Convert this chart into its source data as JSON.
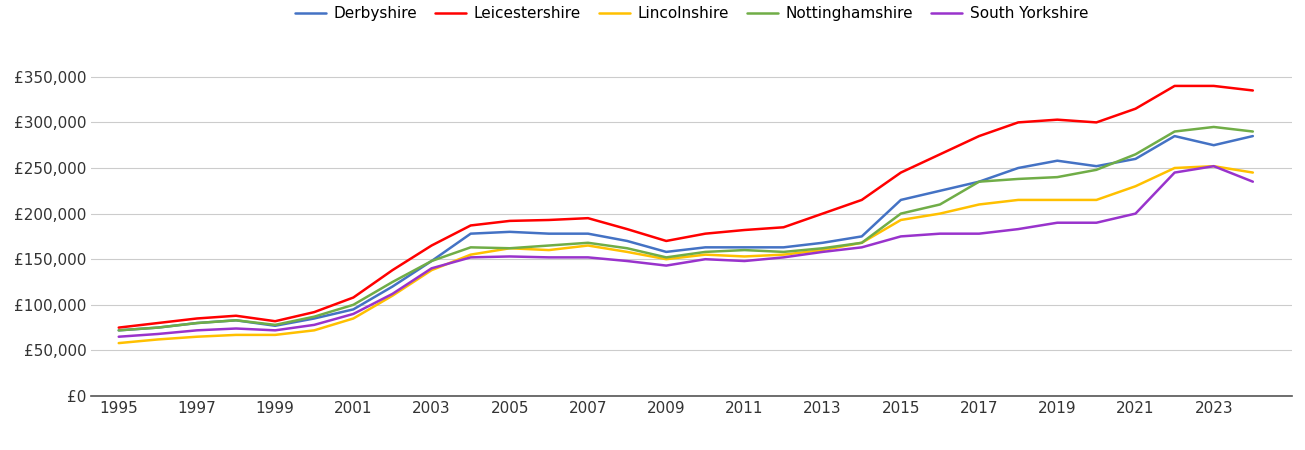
{
  "series": {
    "Derbyshire": {
      "color": "#4472C4",
      "data": {
        "1995": 72000,
        "1996": 75000,
        "1997": 80000,
        "1998": 83000,
        "1999": 77000,
        "2000": 85000,
        "2001": 95000,
        "2002": 120000,
        "2003": 148000,
        "2004": 178000,
        "2005": 180000,
        "2006": 178000,
        "2007": 178000,
        "2008": 170000,
        "2009": 158000,
        "2010": 163000,
        "2011": 163000,
        "2012": 163000,
        "2013": 168000,
        "2014": 175000,
        "2015": 215000,
        "2016": 225000,
        "2017": 235000,
        "2018": 250000,
        "2019": 258000,
        "2020": 252000,
        "2021": 260000,
        "2022": 285000,
        "2023": 275000,
        "2024": 285000
      }
    },
    "Leicestershire": {
      "color": "#FF0000",
      "data": {
        "1995": 75000,
        "1996": 80000,
        "1997": 85000,
        "1998": 88000,
        "1999": 82000,
        "2000": 92000,
        "2001": 108000,
        "2002": 138000,
        "2003": 165000,
        "2004": 187000,
        "2005": 192000,
        "2006": 193000,
        "2007": 195000,
        "2008": 183000,
        "2009": 170000,
        "2010": 178000,
        "2011": 182000,
        "2012": 185000,
        "2013": 200000,
        "2014": 215000,
        "2015": 245000,
        "2016": 265000,
        "2017": 285000,
        "2018": 300000,
        "2019": 303000,
        "2020": 300000,
        "2021": 315000,
        "2022": 340000,
        "2023": 340000,
        "2024": 335000
      }
    },
    "Lincolnshire": {
      "color": "#FFC000",
      "data": {
        "1995": 58000,
        "1996": 62000,
        "1997": 65000,
        "1998": 67000,
        "1999": 67000,
        "2000": 72000,
        "2001": 85000,
        "2002": 110000,
        "2003": 138000,
        "2004": 155000,
        "2005": 162000,
        "2006": 160000,
        "2007": 165000,
        "2008": 158000,
        "2009": 150000,
        "2010": 155000,
        "2011": 153000,
        "2012": 155000,
        "2013": 160000,
        "2014": 168000,
        "2015": 193000,
        "2016": 200000,
        "2017": 210000,
        "2018": 215000,
        "2019": 215000,
        "2020": 215000,
        "2021": 230000,
        "2022": 250000,
        "2023": 252000,
        "2024": 245000
      }
    },
    "Nottinghamshire": {
      "color": "#70AD47",
      "data": {
        "1995": 72000,
        "1996": 75000,
        "1997": 80000,
        "1998": 83000,
        "1999": 78000,
        "2000": 87000,
        "2001": 100000,
        "2002": 125000,
        "2003": 148000,
        "2004": 163000,
        "2005": 162000,
        "2006": 165000,
        "2007": 168000,
        "2008": 162000,
        "2009": 152000,
        "2010": 158000,
        "2011": 160000,
        "2012": 158000,
        "2013": 162000,
        "2014": 168000,
        "2015": 200000,
        "2016": 210000,
        "2017": 235000,
        "2018": 238000,
        "2019": 240000,
        "2020": 248000,
        "2021": 265000,
        "2022": 290000,
        "2023": 295000,
        "2024": 290000
      }
    },
    "South Yorkshire": {
      "color": "#9933CC",
      "data": {
        "1995": 65000,
        "1996": 68000,
        "1997": 72000,
        "1998": 74000,
        "1999": 72000,
        "2000": 78000,
        "2001": 90000,
        "2002": 112000,
        "2003": 140000,
        "2004": 152000,
        "2005": 153000,
        "2006": 152000,
        "2007": 152000,
        "2008": 148000,
        "2009": 143000,
        "2010": 150000,
        "2011": 148000,
        "2012": 152000,
        "2013": 158000,
        "2014": 163000,
        "2015": 175000,
        "2016": 178000,
        "2017": 178000,
        "2018": 183000,
        "2019": 190000,
        "2020": 190000,
        "2021": 200000,
        "2022": 245000,
        "2023": 252000,
        "2024": 235000
      }
    }
  },
  "ylim": [
    0,
    375000
  ],
  "yticks": [
    0,
    50000,
    100000,
    150000,
    200000,
    250000,
    300000,
    350000
  ],
  "xtick_years": [
    1995,
    1997,
    1999,
    2001,
    2003,
    2005,
    2007,
    2009,
    2011,
    2013,
    2015,
    2017,
    2019,
    2021,
    2023
  ],
  "xlim_left": 1994.3,
  "xlim_right": 2025.0,
  "background_color": "#ffffff",
  "grid_color": "#cccccc",
  "line_width": 1.8,
  "legend_fontsize": 11,
  "tick_fontsize": 11
}
